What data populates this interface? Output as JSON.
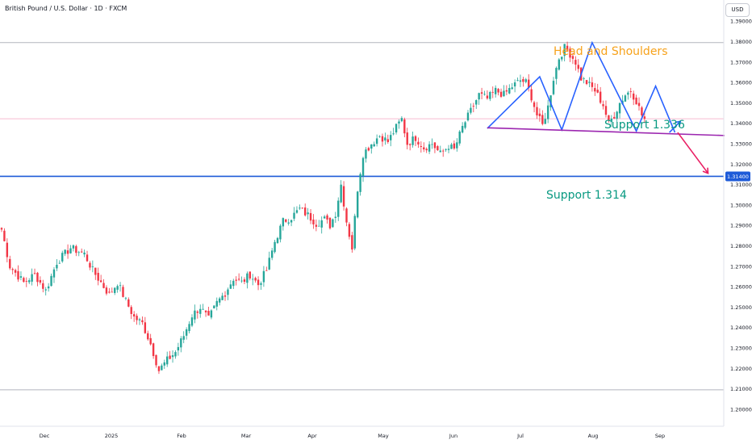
{
  "header": {
    "title": "British Pound / U.S. Dollar · 1D · FXCM",
    "currency": "USD"
  },
  "colors": {
    "up": "#26a69a",
    "down": "#f23645",
    "pattern_line": "#2962ff",
    "neckline": "#9c27b0",
    "projection_arrow": "#e91e63",
    "support_line": "#1e5bd8",
    "pattern_label": "#f7a21b",
    "support_label": "#089981",
    "hline": "#b2b5be",
    "pink_hline": "#f8bbd0",
    "price_badge_bg": "#1e5bd8"
  },
  "chart_data": {
    "type": "candlestick",
    "symbol": "GBPUSD",
    "interval": "1D",
    "ylim": [
      1.195,
      1.3975
    ],
    "y_ticks": [
      "1.20000",
      "1.21000",
      "1.22000",
      "1.23000",
      "1.24000",
      "1.25000",
      "1.26000",
      "1.27000",
      "1.28000",
      "1.29000",
      "1.30000",
      "1.31000",
      "1.32000",
      "1.33000",
      "1.34000",
      "1.35000",
      "1.36000",
      "1.37000",
      "1.38000",
      "1.39000"
    ],
    "x_ticks": [
      "Dec",
      "2025",
      "Feb",
      "Mar",
      "Apr",
      "May",
      "Jun",
      "Jul",
      "Aug",
      "Sep"
    ],
    "current_price_label": "1.31400",
    "anchors": [
      [
        0,
        1.288
      ],
      [
        3,
        1.27
      ],
      [
        8,
        1.262
      ],
      [
        12,
        1.266
      ],
      [
        16,
        1.258
      ],
      [
        20,
        1.272
      ],
      [
        25,
        1.279
      ],
      [
        30,
        1.276
      ],
      [
        33,
        1.268
      ],
      [
        36,
        1.262
      ],
      [
        39,
        1.256
      ],
      [
        42,
        1.262
      ],
      [
        45,
        1.253
      ],
      [
        48,
        1.245
      ],
      [
        51,
        1.242
      ],
      [
        54,
        1.232
      ],
      [
        57,
        1.219
      ],
      [
        60,
        1.224
      ],
      [
        63,
        1.228
      ],
      [
        66,
        1.236
      ],
      [
        69,
        1.246
      ],
      [
        72,
        1.25
      ],
      [
        75,
        1.244
      ],
      [
        78,
        1.252
      ],
      [
        81,
        1.257
      ],
      [
        84,
        1.264
      ],
      [
        87,
        1.262
      ],
      [
        90,
        1.266
      ],
      [
        93,
        1.261
      ],
      [
        96,
        1.268
      ],
      [
        99,
        1.282
      ],
      [
        102,
        1.292
      ],
      [
        105,
        1.294
      ],
      [
        108,
        1.298
      ],
      [
        111,
        1.295
      ],
      [
        114,
        1.291
      ],
      [
        117,
        1.293
      ],
      [
        119,
        1.29
      ],
      [
        121,
        1.296
      ],
      [
        123,
        1.31
      ],
      [
        125,
        1.292
      ],
      [
        127,
        1.279
      ],
      [
        129,
        1.308
      ],
      [
        131,
        1.325
      ],
      [
        134,
        1.33
      ],
      [
        137,
        1.334
      ],
      [
        140,
        1.331
      ],
      [
        143,
        1.338
      ],
      [
        145,
        1.342
      ],
      [
        147,
        1.33
      ],
      [
        150,
        1.333
      ],
      [
        153,
        1.328
      ],
      [
        156,
        1.33
      ],
      [
        159,
        1.325
      ],
      [
        162,
        1.329
      ],
      [
        164,
        1.327
      ],
      [
        167,
        1.338
      ],
      [
        170,
        1.346
      ],
      [
        173,
        1.354
      ],
      [
        176,
        1.352
      ],
      [
        179,
        1.356
      ],
      [
        182,
        1.354
      ],
      [
        185,
        1.358
      ],
      [
        188,
        1.361
      ],
      [
        190,
        1.36
      ],
      [
        192,
        1.353
      ],
      [
        194,
        1.344
      ],
      [
        196,
        1.339
      ],
      [
        198,
        1.348
      ],
      [
        200,
        1.362
      ],
      [
        202,
        1.372
      ],
      [
        204,
        1.377
      ],
      [
        206,
        1.374
      ],
      [
        208,
        1.37
      ],
      [
        210,
        1.362
      ],
      [
        212,
        1.36
      ],
      [
        215,
        1.356
      ],
      [
        218,
        1.349
      ],
      [
        220,
        1.34
      ],
      [
        222,
        1.344
      ],
      [
        224,
        1.35
      ],
      [
        226,
        1.354
      ],
      [
        228,
        1.356
      ],
      [
        230,
        1.351
      ],
      [
        232,
        1.344
      ],
      [
        233,
        1.342
      ]
    ],
    "patterns": {
      "head_and_shoulders_label": "Head and Shoulders",
      "support_1_label": "Support 1.336",
      "support_2_label": "Support 1.314",
      "support_1_level": 1.336,
      "support_2_level": 1.314,
      "resistance_level": 1.3795,
      "reference_level": 1.3422,
      "lower_level": 1.2095,
      "hs_path": [
        [
          176,
          1.3375
        ],
        [
          195,
          1.3628
        ],
        [
          203,
          1.3368
        ],
        [
          214,
          1.3795
        ],
        [
          230,
          1.3362
        ],
        [
          237,
          1.3582
        ],
        [
          244,
          1.3355
        ]
      ],
      "neckline": [
        [
          176,
          1.3378
        ],
        [
          262,
          1.334
        ]
      ],
      "projection_arrow": [
        [
          245,
          1.3355
        ],
        [
          256,
          1.3155
        ]
      ],
      "pullback_arrow": [
        [
          242,
          1.3355
        ],
        [
          246,
          1.341
        ]
      ]
    }
  }
}
